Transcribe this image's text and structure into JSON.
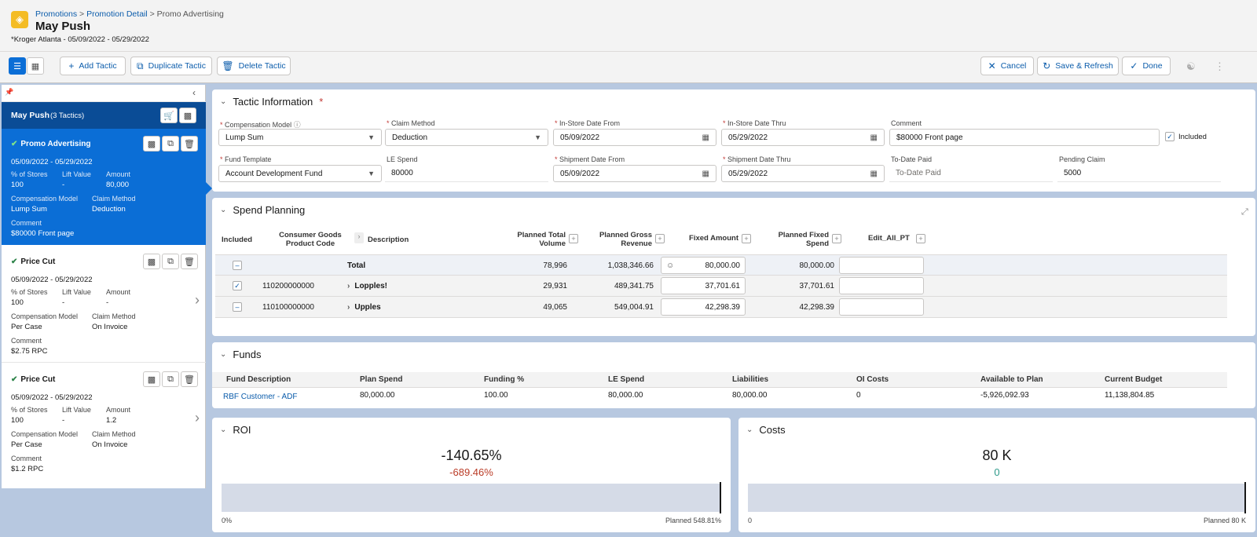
{
  "header": {
    "breadcrumb": [
      "Promotions",
      "Promotion Detail",
      "Promo Advertising"
    ],
    "title": "May Push",
    "subtitle": "*Kroger Atlanta - 05/09/2022 - 05/29/2022"
  },
  "toolbar": {
    "add_tactic": "Add Tactic",
    "duplicate_tactic": "Duplicate Tactic",
    "delete_tactic": "Delete Tactic",
    "cancel": "Cancel",
    "save_refresh": "Save & Refresh",
    "done": "Done"
  },
  "sidebar": {
    "title": "May Push",
    "count": "(3 Tactics)",
    "tactics": [
      {
        "name": "Promo Advertising",
        "dates": "05/09/2022 - 05/29/2022",
        "stores_label": "% of Stores",
        "stores": "100",
        "lift_label": "Lift Value",
        "lift": "-",
        "amount_label": "Amount",
        "amount": "80,000",
        "comp_label": "Compensation Model",
        "comp": "Lump Sum",
        "claim_label": "Claim Method",
        "claim": "Deduction",
        "comment_label": "Comment",
        "comment": "$80000 Front page"
      },
      {
        "name": "Price Cut",
        "dates": "05/09/2022 - 05/29/2022",
        "stores_label": "% of Stores",
        "stores": "100",
        "lift_label": "Lift Value",
        "lift": "-",
        "amount_label": "Amount",
        "amount": "-",
        "comp_label": "Compensation Model",
        "comp": "Per Case",
        "claim_label": "Claim Method",
        "claim": "On Invoice",
        "comment_label": "Comment",
        "comment": "$2.75 RPC"
      },
      {
        "name": "Price Cut",
        "dates": "05/09/2022 - 05/29/2022",
        "stores_label": "% of Stores",
        "stores": "100",
        "lift_label": "Lift Value",
        "lift": "-",
        "amount_label": "Amount",
        "amount": "1.2",
        "comp_label": "Compensation Model",
        "comp": "Per Case",
        "claim_label": "Claim Method",
        "claim": "On Invoice",
        "comment_label": "Comment",
        "comment": "$1.2 RPC"
      }
    ]
  },
  "tactic_info": {
    "title": "Tactic Information",
    "comp_model_label": "Compensation Model",
    "comp_model": "Lump Sum",
    "claim_method_label": "Claim Method",
    "claim_method": "Deduction",
    "instore_from_label": "In-Store Date From",
    "instore_from": "05/09/2022",
    "instore_thru_label": "In-Store Date Thru",
    "instore_thru": "05/29/2022",
    "comment_label": "Comment",
    "comment": "$80000 Front page",
    "included_label": "Included",
    "fund_template_label": "Fund Template",
    "fund_template": "Account Development Fund",
    "le_spend_label": "LE Spend",
    "le_spend": "80000",
    "ship_from_label": "Shipment Date From",
    "ship_from": "05/09/2022",
    "ship_thru_label": "Shipment Date Thru",
    "ship_thru": "05/29/2022",
    "todate_paid_label": "To-Date Paid",
    "todate_paid_placeholder": "To-Date Paid",
    "pending_claim_label": "Pending Claim",
    "pending_claim": "5000"
  },
  "spend_planning": {
    "title": "Spend Planning",
    "headers": {
      "included": "Included",
      "product_code_1": "Consumer Goods",
      "product_code_2": "Product Code",
      "description": "Description",
      "total_volume_1": "Planned Total",
      "total_volume_2": "Volume",
      "gross_revenue_1": "Planned Gross",
      "gross_revenue_2": "Revenue",
      "fixed_amount": "Fixed Amount",
      "fixed_spend_1": "Planned Fixed",
      "fixed_spend_2": "Spend",
      "edit_all": "Edit_All_PT"
    },
    "rows": [
      {
        "code": "",
        "desc": "Total",
        "volume": "78,996",
        "revenue": "1,038,346.66",
        "fixed": "80,000.00",
        "spend": "80,000.00"
      },
      {
        "code": "110200000000",
        "desc": "Lopples!",
        "volume": "29,931",
        "revenue": "489,341.75",
        "fixed": "37,701.61",
        "spend": "37,701.61"
      },
      {
        "code": "110100000000",
        "desc": "Upples",
        "volume": "49,065",
        "revenue": "549,004.91",
        "fixed": "42,298.39",
        "spend": "42,298.39"
      }
    ]
  },
  "funds": {
    "title": "Funds",
    "headers": [
      "Fund Description",
      "Plan Spend",
      "Funding %",
      "LE Spend",
      "Liabilities",
      "OI Costs",
      "Available to Plan",
      "Current Budget"
    ],
    "row": [
      "RBF Customer - ADF",
      "80,000.00",
      "100.00",
      "80,000.00",
      "80,000.00",
      "0",
      "-5,926,092.93",
      "11,138,804.85"
    ]
  },
  "roi": {
    "title": "ROI",
    "value": "-140.65%",
    "delta": "-689.46%",
    "min_label": "0%",
    "planned_label": "Planned 548.81%"
  },
  "costs": {
    "title": "Costs",
    "value": "80 K",
    "delta": "0",
    "min_label": "0",
    "planned_label": "Planned 80 K"
  },
  "colors": {
    "accent": "#0b5cab",
    "selected": "#0b6ed6",
    "negative": "#ba3c27",
    "positive": "#2e9a8a"
  }
}
